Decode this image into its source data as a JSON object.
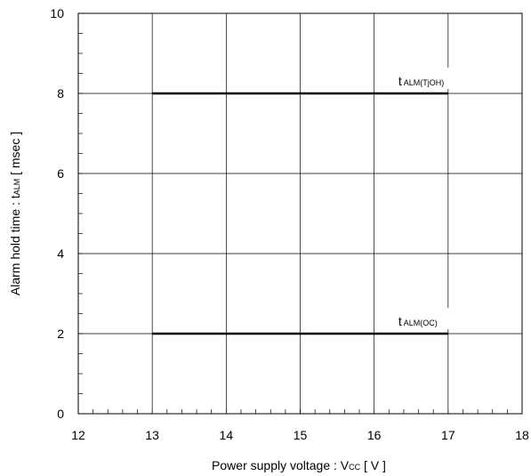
{
  "chart_data": {
    "type": "line",
    "xlabel": {
      "main": "Power supply voltage  :  V",
      "sub": "CC",
      "tail": " [ V ]"
    },
    "ylabel": {
      "main": "Alarm hold time : t",
      "sub": "ALM",
      "tail": " [ msec ]"
    },
    "xlim": [
      12,
      18
    ],
    "ylim": [
      0,
      10
    ],
    "x_ticks": [
      12,
      13,
      14,
      15,
      16,
      17,
      18
    ],
    "y_ticks": [
      0,
      2,
      4,
      6,
      8,
      10
    ],
    "x_minor_step": 0.2,
    "y_minor_step": 0.5,
    "grid": true,
    "series": [
      {
        "label_main": "t",
        "label_sub": "ALM(TjOH)",
        "x": [
          13,
          17
        ],
        "y": [
          8,
          8
        ],
        "color": "#000000"
      },
      {
        "label_main": "t",
        "label_sub": "ALM(OC)",
        "x": [
          13,
          17
        ],
        "y": [
          2,
          2
        ],
        "color": "#000000"
      }
    ]
  }
}
